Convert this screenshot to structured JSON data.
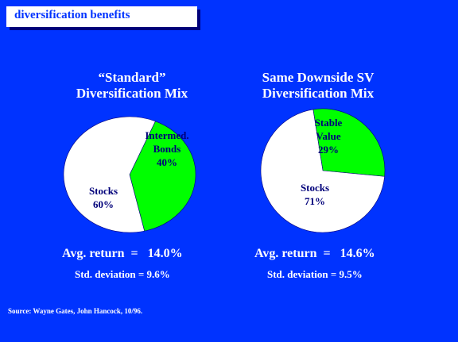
{
  "header": {
    "title": "diversification benefits"
  },
  "colors": {
    "background": "#0033ff",
    "stocks": "#ffffff",
    "bonds": "#00ff00",
    "label": "#00007a"
  },
  "chart_data": [
    {
      "type": "pie",
      "title": "“Standard”\nDiversification Mix",
      "title_lines": [
        "“Standard”",
        "Diversification Mix"
      ],
      "slices": [
        {
          "label_lines": [
            "Intermed.",
            "Bonds"
          ],
          "value": 40,
          "value_label": "40%",
          "color": "#00ff00"
        },
        {
          "label_lines": [
            "Stocks"
          ],
          "value": 60,
          "value_label": "60%",
          "color": "#ffffff"
        }
      ],
      "stats": {
        "avg_return": "Avg. return  =   14.0%",
        "std_dev": "Std. deviation = 9.6%"
      }
    },
    {
      "type": "pie",
      "title": "Same Downside SV\nDiversification Mix",
      "title_lines": [
        "Same Downside SV",
        "Diversification Mix"
      ],
      "slices": [
        {
          "label_lines": [
            "Stable",
            "Value"
          ],
          "value": 29,
          "value_label": "29%",
          "color": "#00ff00"
        },
        {
          "label_lines": [
            "Stocks"
          ],
          "value": 71,
          "value_label": "71%",
          "color": "#ffffff"
        }
      ],
      "stats": {
        "avg_return": "Avg. return  =   14.6%",
        "std_dev": "Std. deviation = 9.5%"
      }
    }
  ],
  "footer": {
    "source": "Source:  Wayne Gates, John Hancock, 10/96."
  }
}
